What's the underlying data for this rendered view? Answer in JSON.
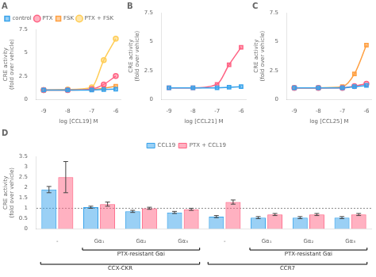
{
  "chart_data": [
    {
      "type": "line",
      "title": "A",
      "x": [
        -9,
        -8,
        -7,
        -6.5,
        -6
      ],
      "series": [
        {
          "name": "control",
          "marker": "square",
          "values": [
            1.0,
            1.0,
            1.0,
            1.05,
            1.1
          ]
        },
        {
          "name": "PTX",
          "marker": "circle",
          "values": [
            1.0,
            1.0,
            1.1,
            1.6,
            2.5
          ]
        },
        {
          "name": "FSK",
          "marker": "square",
          "values": [
            1.0,
            1.0,
            1.05,
            1.2,
            1.4
          ]
        },
        {
          "name": "PTX + FSK",
          "marker": "circle",
          "values": [
            1.0,
            1.05,
            1.3,
            4.2,
            6.5
          ]
        }
      ],
      "xlabel": "log [CCL19] M",
      "ylabel": "CRE activity\n(fold over vehicle)",
      "xlim": [
        -9.3,
        -5.8
      ],
      "xticks": [
        -9,
        -8,
        -7,
        -6
      ],
      "ylim": [
        0,
        7.5
      ],
      "yticks": [
        0,
        2.5,
        5,
        7.5
      ],
      "legend": "upper left",
      "grid": false
    },
    {
      "type": "line",
      "title": "B",
      "x": [
        -9,
        -8,
        -7,
        -6.5,
        -6
      ],
      "series": [
        {
          "marker": "square",
          "values": [
            1.0,
            1.0,
            1.0,
            1.05,
            1.1
          ]
        },
        {
          "marker": "square",
          "values": [
            1.0,
            1.0,
            1.3,
            3.0,
            4.5
          ]
        }
      ],
      "xlabel": "log [CCL21] M",
      "ylabel": "CRE activity\n(fold over vehicle)",
      "xlim": [
        -9.3,
        -5.8
      ],
      "xticks": [
        -9,
        -8,
        -7,
        -6
      ],
      "ylim": [
        0,
        7.5
      ],
      "yticks": [
        0,
        2.5,
        5,
        7.5
      ],
      "grid": false
    },
    {
      "type": "line",
      "title": "C",
      "x": [
        -9,
        -8,
        -7,
        -6.5,
        -6
      ],
      "series": [
        {
          "marker": "square",
          "values": [
            1.0,
            1.0,
            1.0,
            1.1,
            1.2
          ]
        },
        {
          "marker": "circle",
          "values": [
            1.0,
            1.0,
            1.0,
            1.15,
            1.35
          ]
        },
        {
          "marker": "square",
          "values": [
            1.0,
            1.0,
            1.1,
            2.2,
            4.7
          ]
        }
      ],
      "xlabel": "log [CCL25] M",
      "ylabel": "CRE activity\n(fold over vehicle)",
      "xlim": [
        -9.3,
        -5.8
      ],
      "xticks": [
        -9,
        -8,
        -7,
        -6
      ],
      "ylim": [
        0,
        7.5
      ],
      "yticks": [
        0,
        2.5,
        5,
        7.5
      ],
      "grid": false
    },
    {
      "type": "bar",
      "title": "D",
      "categories": [
        "-",
        "Gα₁",
        "Gα₂",
        "Gα₃",
        "-",
        "Gα₁",
        "Gα₂",
        "Gα₃"
      ],
      "series": [
        {
          "name": "CCL19",
          "values": [
            1.9,
            1.05,
            0.85,
            0.8,
            0.6,
            0.55,
            0.55,
            0.55
          ],
          "errors": [
            0.15,
            0.05,
            0.05,
            0.05,
            0.05,
            0.05,
            0.05,
            0.05
          ]
        },
        {
          "name": "PTX + CCL19",
          "values": [
            2.5,
            1.2,
            1.0,
            0.95,
            1.3,
            0.7,
            0.7,
            0.7
          ],
          "errors": [
            0.75,
            0.1,
            0.05,
            0.05,
            0.1,
            0.05,
            0.05,
            0.05
          ]
        }
      ],
      "ylabel": "CRE activity\n(fold over vehicle)",
      "ylim": [
        0,
        3.5
      ],
      "yticks": [
        0,
        0.5,
        1,
        1.5,
        2,
        2.5,
        3,
        3.5
      ],
      "reference_line": 1.0,
      "annotations": [
        {
          "text": "PTX-resistant Gαi",
          "start": 1,
          "end": 3
        },
        {
          "text": "PTX-resistant Gαi",
          "start": 5,
          "end": 7
        },
        {
          "text": "CCX-CKR",
          "start": 0,
          "end": 3
        },
        {
          "text": "CCR7",
          "start": 4,
          "end": 7
        }
      ],
      "legend": "upper center",
      "grid": false
    }
  ]
}
